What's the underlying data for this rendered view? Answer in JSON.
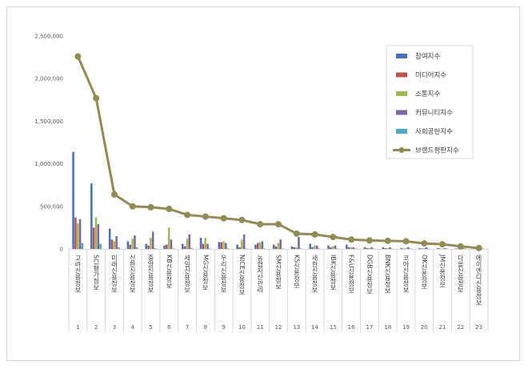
{
  "chart_data": {
    "type": "bar",
    "title": "",
    "xlabel": "",
    "ylabel": "",
    "ylim": [
      0,
      2500000
    ],
    "yticks": [
      "0",
      "500,000",
      "1,000,000",
      "1,500,000",
      "2,000,000",
      "2,500,000"
    ],
    "grid": false,
    "legend_position": "top-right",
    "categories": [
      "고려신용정보",
      "SCI평가정보",
      "미래신용정보",
      "신한신용정보",
      "중앙신용정보",
      "KB신용정보",
      "세일신용정보",
      "MG신용정보",
      "우리신용정보",
      "NICE신용정보",
      "농협자산관리",
      "SM신용정보",
      "KS신용정보",
      "새한신용정보",
      "IBK신용정보",
      "F&U신용정보",
      "DGB신용정보",
      "BNK신용정보",
      "코아신용정보",
      "OK신용정보",
      "JM신용정보",
      "다올신용정보",
      "에이엔디신용정보"
    ],
    "numbers": [
      "1",
      "2",
      "3",
      "4",
      "5",
      "6",
      "7",
      "8",
      "9",
      "10",
      "11",
      "12",
      "13",
      "14",
      "15",
      "16",
      "17",
      "18",
      "19",
      "20",
      "21",
      "22",
      "23"
    ],
    "series": [
      {
        "name": "참여지수",
        "color": "#4472c4",
        "kind": "bar",
        "values": [
          1140000,
          770000,
          240000,
          90000,
          60000,
          40000,
          60000,
          130000,
          80000,
          50000,
          50000,
          50000,
          30000,
          60000,
          40000,
          50000,
          20000,
          20000,
          10000,
          10000,
          10000,
          5000,
          5000
        ]
      },
      {
        "name": "미디어지수",
        "color": "#c0504d",
        "kind": "bar",
        "values": [
          370000,
          250000,
          110000,
          50000,
          40000,
          50000,
          30000,
          60000,
          80000,
          20000,
          70000,
          30000,
          20000,
          20000,
          20000,
          20000,
          10000,
          10000,
          5000,
          5000,
          5000,
          5000,
          5000
        ]
      },
      {
        "name": "소통지수",
        "color": "#9bbb59",
        "kind": "bar",
        "values": [
          300000,
          370000,
          90000,
          120000,
          130000,
          250000,
          120000,
          130000,
          90000,
          110000,
          80000,
          70000,
          20000,
          40000,
          30000,
          20000,
          10000,
          10000,
          10000,
          10000,
          5000,
          5000,
          5000
        ]
      },
      {
        "name": "커뮤니티지수",
        "color": "#8064a2",
        "kind": "bar",
        "values": [
          350000,
          290000,
          150000,
          160000,
          200000,
          110000,
          170000,
          60000,
          70000,
          170000,
          90000,
          110000,
          140000,
          40000,
          40000,
          20000,
          20000,
          20000,
          20000,
          20000,
          10000,
          10000,
          5000
        ]
      },
      {
        "name": "사회공헌지수",
        "color": "#4bacc6",
        "kind": "bar",
        "values": [
          70000,
          60000,
          20000,
          20000,
          10000,
          5000,
          10000,
          5000,
          5000,
          5000,
          5000,
          5000,
          5000,
          5000,
          5000,
          5000,
          5000,
          5000,
          5000,
          5000,
          5000,
          5000,
          5000
        ]
      },
      {
        "name": "브랜드평판지수",
        "color": "#948a54",
        "kind": "line",
        "values": [
          2260000,
          1770000,
          640000,
          500000,
          490000,
          470000,
          400000,
          380000,
          360000,
          340000,
          290000,
          290000,
          180000,
          170000,
          140000,
          110000,
          100000,
          95000,
          90000,
          65000,
          55000,
          30000,
          10000
        ]
      }
    ]
  }
}
